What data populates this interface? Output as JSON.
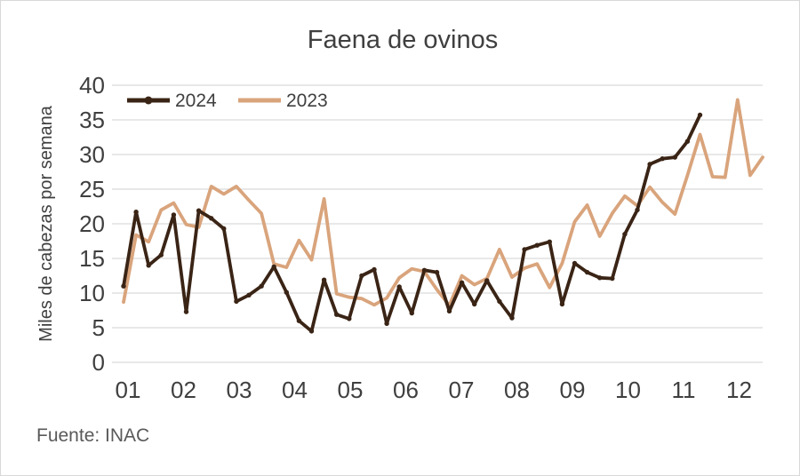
{
  "source": "Fuente: INAC",
  "chart_data": {
    "type": "line",
    "title": "Faena de ovinos",
    "ylabel": "Miles de cabezas por semana",
    "xlabel": "",
    "x_tick_labels": [
      "01",
      "02",
      "03",
      "04",
      "05",
      "06",
      "07",
      "08",
      "09",
      "10",
      "11",
      "12"
    ],
    "ylim": [
      0,
      40
    ],
    "y_ticks": [
      0,
      5,
      10,
      15,
      20,
      25,
      30,
      35,
      40
    ],
    "grid": "horizontal",
    "legend_position": "top-left",
    "grid_color": "#d9d9d9",
    "axis_text_color": "#3f3f3f",
    "series": [
      {
        "name": "2023",
        "color": "#d9a47c",
        "marker": false,
        "values": [
          8.7,
          18.4,
          17.4,
          22,
          23,
          19.9,
          19.5,
          25.4,
          24.3,
          25.4,
          23.4,
          21.5,
          14.2,
          13.7,
          17.6,
          14.8,
          23.6,
          9.9,
          9.4,
          9.2,
          8.3,
          9.3,
          12.2,
          13.5,
          13.1,
          10.5,
          8.2,
          12.5,
          11.2,
          12.1,
          16.3,
          12.3,
          13.6,
          14.2,
          10.8,
          14.3,
          20.3,
          22.7,
          18.2,
          21.5,
          24,
          22.6,
          25.3,
          23.1,
          21.4,
          27,
          32.9,
          26.8,
          26.7,
          37.9,
          27,
          29.6
        ]
      },
      {
        "name": "2024",
        "color": "#3a2415",
        "marker": true,
        "values": [
          11,
          21.7,
          14,
          15.5,
          21.3,
          7.3,
          21.9,
          20.8,
          19.3,
          8.8,
          9.7,
          11,
          13.8,
          10.1,
          6,
          4.5,
          11.9,
          6.9,
          6.3,
          12.5,
          13.4,
          5.6,
          10.9,
          7.1,
          13.3,
          13,
          7.4,
          11.5,
          8.4,
          11.8,
          8.8,
          6.4,
          16.3,
          16.9,
          17.4,
          8.4,
          14.3,
          13,
          12.2,
          12.1,
          18.5,
          22,
          28.6,
          29.4,
          29.6,
          31.9,
          35.7
        ]
      }
    ],
    "legend_order": [
      "2024",
      "2023"
    ]
  }
}
